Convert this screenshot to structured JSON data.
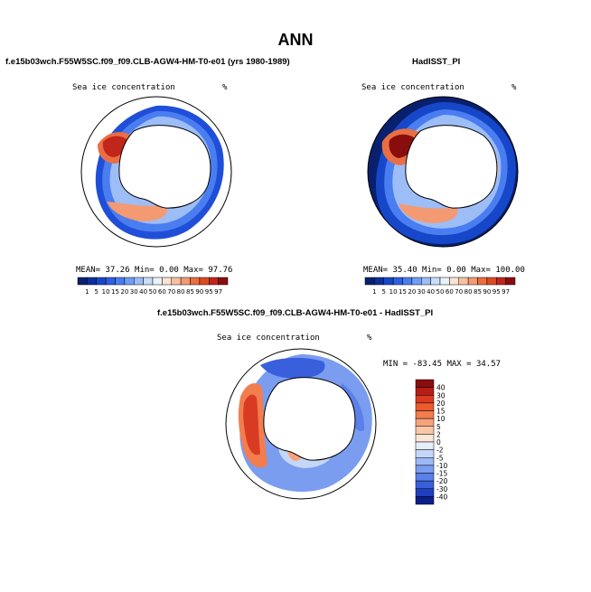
{
  "title": "ANN",
  "left_panel": {
    "case": "f.e15b03wch.F55W5SC.f09_f09.CLB-AGW4-HM-T0-e01 (yrs 1980-1989)",
    "variable": "Sea ice concentration",
    "unit": "%",
    "stats": {
      "mean_label": "MEAN=",
      "mean": "37.26",
      "min_label": "Min=",
      "min": "0.00",
      "max_label": "Max=",
      "max": "97.76"
    }
  },
  "right_panel": {
    "case": "HadISST_PI",
    "variable": "Sea ice concentration",
    "unit": "%",
    "stats": {
      "mean_label": "MEAN=",
      "mean": "35.40",
      "min_label": "Min=",
      "min": "0.00",
      "max_label": "Max=",
      "max": "100.00"
    }
  },
  "diff_panel": {
    "case": "f.e15b03wch.F55W5SC.f09_f09.CLB-AGW4-HM-T0-e01 - HadISST_PI",
    "variable": "Sea ice concentration",
    "unit": "%",
    "stats_text": "MIN = -83.45 MAX = 34.57"
  },
  "colorbar_abs": {
    "labels": [
      "1",
      "5",
      "10",
      "15",
      "20",
      "30",
      "40",
      "50",
      "60",
      "70",
      "80",
      "85",
      "90",
      "95",
      "97"
    ],
    "colors": [
      "#08206e",
      "#0a2f9e",
      "#1747c9",
      "#2f5fe0",
      "#4a7df0",
      "#6f9df5",
      "#9dbdf7",
      "#c9dcf9",
      "#e9f1fb",
      "#fde3d3",
      "#f8c0a0",
      "#f39a72",
      "#ea6e43",
      "#dc4a23",
      "#c0261a",
      "#8a0d0d"
    ]
  },
  "colorbar_diff": {
    "labels": [
      "40",
      "30",
      "20",
      "15",
      "10",
      "5",
      "2",
      "0",
      "-2",
      "-5",
      "-10",
      "-15",
      "-20",
      "-30",
      "-40"
    ],
    "colors": [
      "#8a0d0d",
      "#b51d16",
      "#d93b22",
      "#ec5a2e",
      "#f27d4f",
      "#f6a37c",
      "#f9c6a8",
      "#fde6d8",
      "#e5eefb",
      "#c4d7f8",
      "#9db9f4",
      "#7a9df0",
      "#5b80ea",
      "#3a5fdc",
      "#1f3fbf",
      "#0a1f8a"
    ]
  }
}
